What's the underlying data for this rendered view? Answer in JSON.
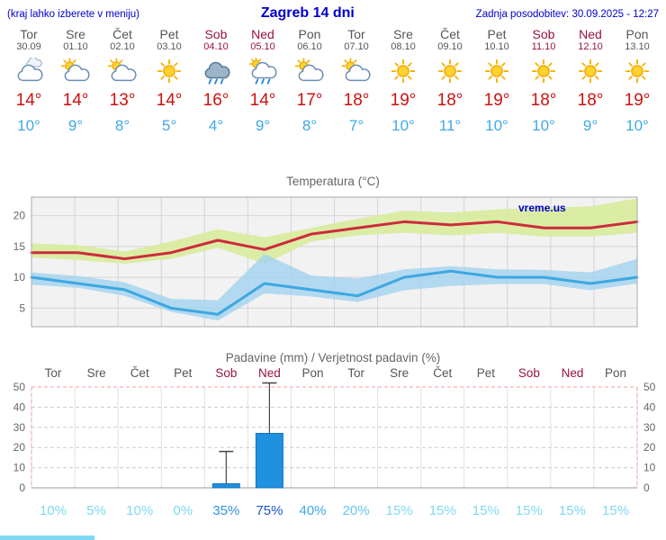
{
  "header": {
    "left_note": "(kraj lahko izberete v meniju)",
    "title": "Zagreb 14 dni",
    "last_update": "Zadnja posodobitev: 30.09.2025 - 12:27"
  },
  "colors": {
    "accent_blue": "#0000cc",
    "weekend": "#991144",
    "day_label": "#555555",
    "temp_high": "#cc1111",
    "temp_low": "#3fa9e8"
  },
  "days": [
    {
      "name": "Tor",
      "date": "30.09",
      "icon": "cloudy",
      "high": "14°",
      "low": "10°",
      "weekend": false
    },
    {
      "name": "Sre",
      "date": "01.10",
      "icon": "partly",
      "high": "14°",
      "low": "9°",
      "weekend": false
    },
    {
      "name": "Čet",
      "date": "02.10",
      "icon": "partly",
      "high": "13°",
      "low": "8°",
      "weekend": false
    },
    {
      "name": "Pet",
      "date": "03.10",
      "icon": "sunny",
      "high": "14°",
      "low": "5°",
      "weekend": false
    },
    {
      "name": "Sob",
      "date": "04.10",
      "icon": "rain",
      "high": "16°",
      "low": "4°",
      "weekend": true
    },
    {
      "name": "Ned",
      "date": "05.10",
      "icon": "sunrain",
      "high": "14°",
      "low": "9°",
      "weekend": true
    },
    {
      "name": "Pon",
      "date": "06.10",
      "icon": "partly",
      "high": "17°",
      "low": "8°",
      "weekend": false
    },
    {
      "name": "Tor",
      "date": "07.10",
      "icon": "partly",
      "high": "18°",
      "low": "7°",
      "weekend": false
    },
    {
      "name": "Sre",
      "date": "08.10",
      "icon": "sunny",
      "high": "19°",
      "low": "10°",
      "weekend": false
    },
    {
      "name": "Čet",
      "date": "09.10",
      "icon": "sunny",
      "high": "18°",
      "low": "11°",
      "weekend": false
    },
    {
      "name": "Pet",
      "date": "10.10",
      "icon": "sunny",
      "high": "19°",
      "low": "10°",
      "weekend": false
    },
    {
      "name": "Sob",
      "date": "11.10",
      "icon": "sunny",
      "high": "18°",
      "low": "10°",
      "weekend": true
    },
    {
      "name": "Ned",
      "date": "12.10",
      "icon": "sunny",
      "high": "18°",
      "low": "9°",
      "weekend": true
    },
    {
      "name": "Pon",
      "date": "13.10",
      "icon": "sunny",
      "high": "19°",
      "low": "10°",
      "weekend": false
    }
  ],
  "chart_data": [
    {
      "type": "line",
      "title": "Temperatura (°C)",
      "watermark": "vreme.us",
      "x": [
        "Tor",
        "Sre",
        "Čet",
        "Pet",
        "Sob",
        "Ned",
        "Pon",
        "Tor",
        "Sre",
        "Čet",
        "Pet",
        "Sob",
        "Ned",
        "Pon"
      ],
      "ylim": [
        2,
        23
      ],
      "yticks": [
        5,
        10,
        15,
        20
      ],
      "grid": true,
      "legend": "none",
      "series": [
        {
          "name": "max temperature",
          "color": "#cc2b3d",
          "values": [
            14,
            14,
            13,
            14,
            16,
            14.5,
            17,
            18,
            19,
            18.5,
            19,
            18,
            18,
            19
          ]
        },
        {
          "name": "min temperature",
          "color": "#3ea7e0",
          "values": [
            10,
            9,
            8,
            5,
            4,
            9,
            8,
            7,
            10,
            11,
            10,
            10,
            9,
            10
          ]
        }
      ],
      "bands": [
        {
          "name": "max-range",
          "color": "#d9eb9e",
          "upper": [
            15.5,
            15.2,
            14.2,
            15.8,
            17.8,
            16.5,
            18,
            19.5,
            20.8,
            20.5,
            21,
            21.3,
            21.5,
            22.8
          ],
          "lower": [
            13.2,
            12.8,
            12.2,
            13,
            14.8,
            12.2,
            15.8,
            16.8,
            17.2,
            16.8,
            17.2,
            16.6,
            16.6,
            17.2
          ]
        },
        {
          "name": "min-range",
          "color": "#a3d3ee",
          "upper": [
            10.8,
            10.2,
            9.2,
            6.5,
            6.3,
            13.8,
            10.3,
            9.8,
            11.3,
            11.8,
            11.3,
            11.2,
            10.8,
            13
          ],
          "lower": [
            8.8,
            8.3,
            7,
            4.4,
            3,
            7.4,
            6.9,
            6,
            7.9,
            8.6,
            8.9,
            8.9,
            7.9,
            9
          ]
        }
      ]
    },
    {
      "type": "bar",
      "title": "Padavine (mm) / Verjetnost padavin (%)",
      "categories": [
        "Tor",
        "Sre",
        "Čet",
        "Pet",
        "Sob",
        "Ned",
        "Pon",
        "Tor",
        "Sre",
        "Čet",
        "Pet",
        "Sob",
        "Ned",
        "Pon"
      ],
      "weekend": [
        false,
        false,
        false,
        false,
        true,
        true,
        false,
        false,
        false,
        false,
        false,
        true,
        true,
        false
      ],
      "values_mm": [
        0,
        0,
        0,
        0,
        2,
        27,
        0,
        0,
        0,
        0,
        0,
        0,
        0,
        0
      ],
      "whisker_mm": [
        0,
        0,
        0,
        0,
        18,
        52,
        0,
        0,
        0,
        0,
        0,
        0,
        0,
        0
      ],
      "probability": [
        "10%",
        "5%",
        "10%",
        "0%",
        "35%",
        "75%",
        "40%",
        "20%",
        "15%",
        "15%",
        "15%",
        "15%",
        "15%",
        "15%"
      ],
      "probability_colors": [
        "#7fd9f2",
        "#7fd9f2",
        "#7fd9f2",
        "#7fd9f2",
        "#2e93d6",
        "#1a55cc",
        "#3fa8e8",
        "#66c6ee",
        "#7fd9f2",
        "#7fd9f2",
        "#7fd9f2",
        "#7fd9f2",
        "#7fd9f2",
        "#7fd9f2"
      ],
      "ylim": [
        0,
        50
      ],
      "yticks": [
        0,
        10,
        20,
        30,
        40,
        50
      ],
      "bar_color": "#2090e0"
    }
  ]
}
